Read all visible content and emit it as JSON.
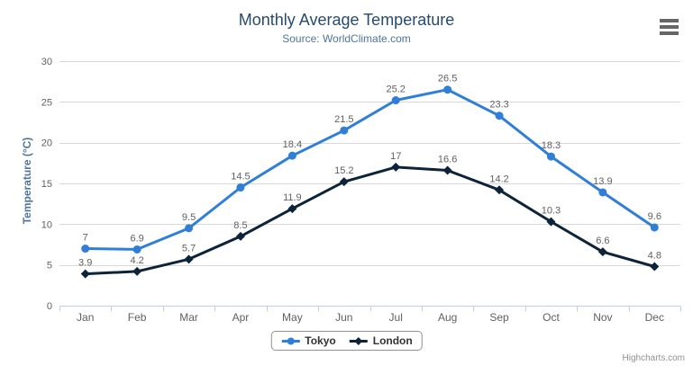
{
  "title": "Monthly Average Temperature",
  "subtitle": "Source: WorldClimate.com",
  "credits": "Highcharts.com",
  "icons": {
    "menu": "hamburger-menu-icon"
  },
  "colors": {
    "title": "#274b6d",
    "subtitle": "#4d759e",
    "axis_title": "#4d759e",
    "axis_label": "#606060",
    "grid_line": "#d8d8d8",
    "axis_line": "#c0d0e0",
    "data_label": "#606060",
    "legend_border": "#909090",
    "legend_text": "#333333",
    "credits_text": "#909090",
    "menu_icon": "#666666"
  },
  "chart_data": {
    "type": "line",
    "title": "Monthly Average Temperature",
    "subtitle": "Source: WorldClimate.com",
    "categories": [
      "Jan",
      "Feb",
      "Mar",
      "Apr",
      "May",
      "Jun",
      "Jul",
      "Aug",
      "Sep",
      "Oct",
      "Nov",
      "Dec"
    ],
    "series": [
      {
        "name": "Tokyo",
        "color": "#2f7ed8",
        "marker": "circle",
        "values": [
          7,
          6.9,
          9.5,
          14.5,
          18.4,
          21.5,
          25.2,
          26.5,
          23.3,
          18.3,
          13.9,
          9.6
        ]
      },
      {
        "name": "London",
        "color": "#0d233a",
        "marker": "diamond",
        "values": [
          3.9,
          4.2,
          5.7,
          8.5,
          11.9,
          15.2,
          17,
          16.6,
          14.2,
          10.3,
          6.6,
          4.8
        ]
      }
    ],
    "xlabel": "",
    "ylabel": "Temperature (°C)",
    "ylim": [
      0,
      30
    ],
    "yticks": [
      0,
      5,
      10,
      15,
      20,
      25,
      30
    ],
    "grid": true,
    "data_labels": true,
    "legend_position": "bottom"
  }
}
